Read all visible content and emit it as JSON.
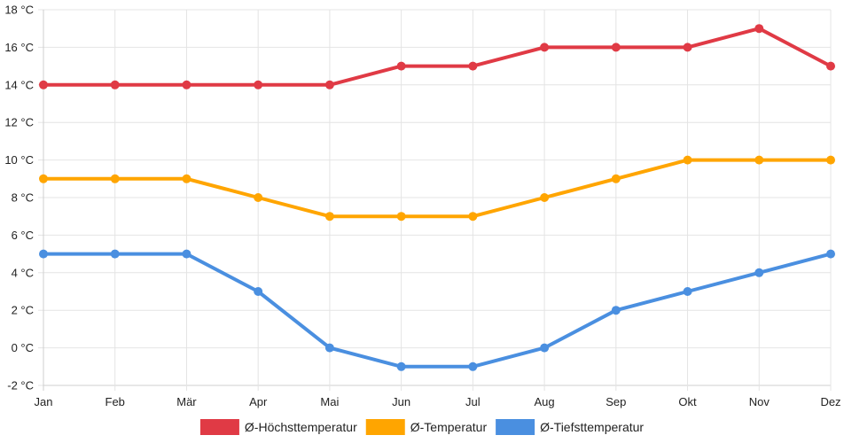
{
  "chart_data": {
    "type": "line",
    "title": "",
    "xlabel": "",
    "ylabel": "",
    "categories": [
      "Jan",
      "Feb",
      "Mär",
      "Apr",
      "Mai",
      "Jun",
      "Jul",
      "Aug",
      "Sep",
      "Okt",
      "Nov",
      "Dez"
    ],
    "ylim": [
      -2,
      18
    ],
    "ytick_step": 2,
    "y_unit": "°C",
    "grid": true,
    "legend_position": "bottom",
    "series": [
      {
        "name": "Ø-Höchsttemperatur",
        "color": "#e03a45",
        "values": [
          14,
          14,
          14,
          14,
          14,
          15,
          15,
          16,
          16,
          16,
          17,
          15
        ]
      },
      {
        "name": "Ø-Temperatur",
        "color": "#ffa500",
        "values": [
          9,
          9,
          9,
          8,
          7,
          7,
          7,
          8,
          9,
          10,
          10,
          10
        ]
      },
      {
        "name": "Ø-Tiefsttemperatur",
        "color": "#4a8fe0",
        "values": [
          5,
          5,
          5,
          3,
          0,
          -1,
          -1,
          0,
          2,
          3,
          4,
          5
        ]
      }
    ]
  }
}
